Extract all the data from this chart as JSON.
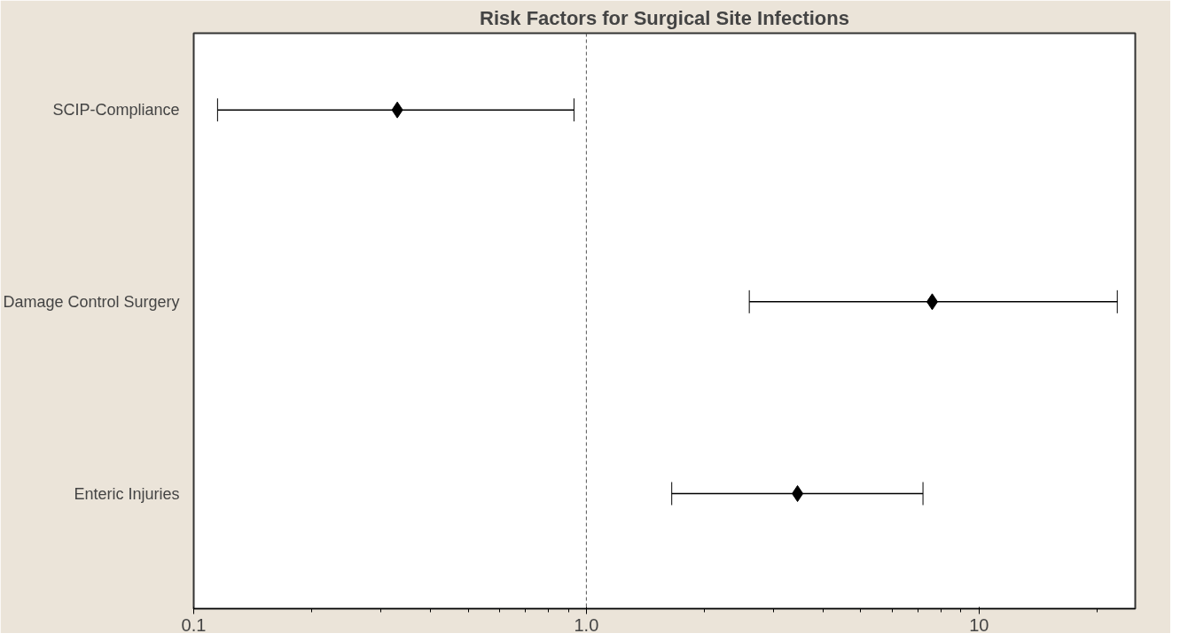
{
  "chart_data": {
    "type": "scatter",
    "title": "Risk Factors for Surgical Site Infections",
    "orientation": "horizontal",
    "log": "x",
    "categories": [
      "SCIP-Compliance",
      "Damage Control Surgery",
      "Enteric Injuries"
    ],
    "values": [
      0.33,
      7.6,
      3.45
    ],
    "errors": [
      [
        0.115,
        0.93
      ],
      [
        2.6,
        22.5
      ],
      [
        1.65,
        7.2
      ]
    ],
    "color": "#000000",
    "marker": "diamond",
    "grid": false,
    "legend": false,
    "xlim": [
      0.1,
      25
    ],
    "xticks": [
      {
        "value": 0.1,
        "label": "0.1"
      },
      {
        "value": 1,
        "label": "1.0"
      },
      10
    ],
    "ref_lines": [
      {
        "axis": "x",
        "value": 1,
        "label": null,
        "line_style": "dashed",
        "color": "#555555"
      }
    ]
  }
}
